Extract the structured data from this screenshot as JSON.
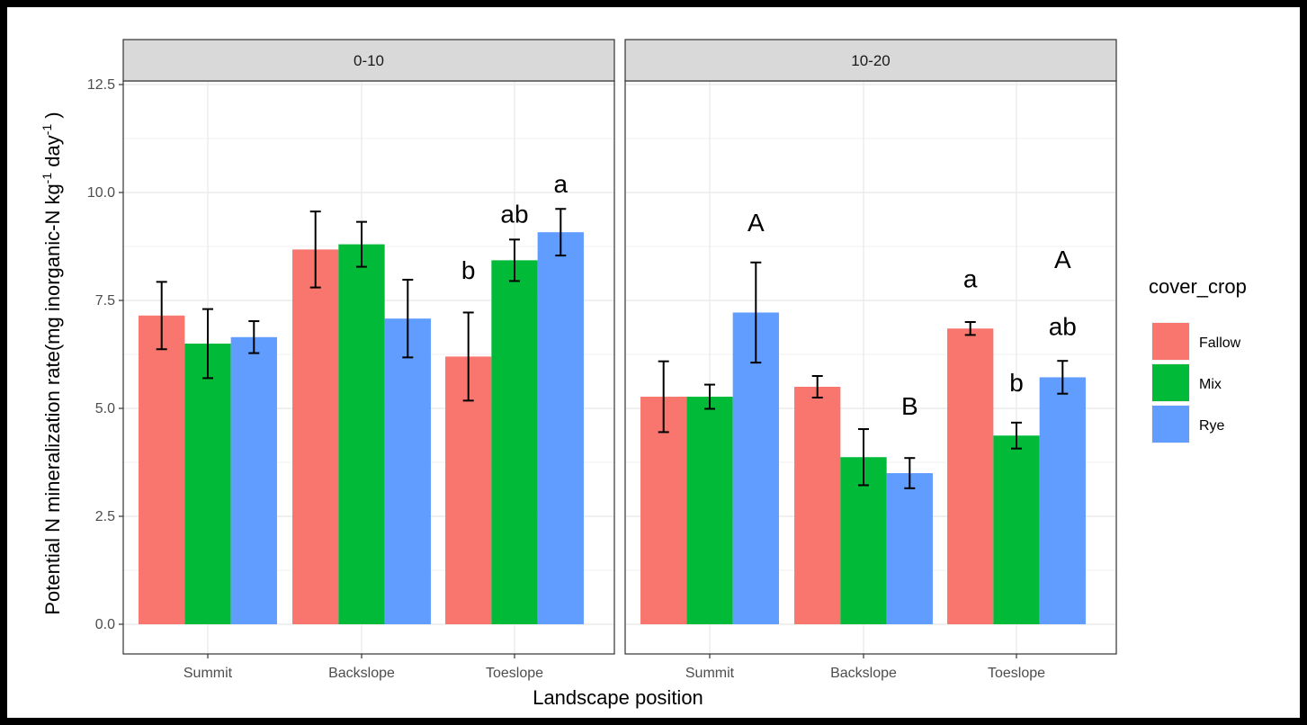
{
  "chart_data": {
    "type": "bar",
    "ylabel_main": "Potential N mineralization rate(mg inorganic-N kg",
    "ylabel_sup1": "-1",
    "ylabel_mid": " day",
    "ylabel_sup2": "-1",
    "ylabel_end": " )",
    "xlabel": "Landscape position",
    "ylim": [
      0,
      12.5
    ],
    "yticks": [
      "0.0",
      "2.5",
      "5.0",
      "7.5",
      "10.0",
      "12.5"
    ],
    "ytick_values": [
      0,
      2.5,
      5,
      7.5,
      10,
      12.5
    ],
    "categories": [
      "Summit",
      "Backslope",
      "Toeslope"
    ],
    "legend": {
      "title": "cover_crop",
      "placement": "right",
      "items": [
        {
          "name": "Fallow",
          "color": "#F8766D"
        },
        {
          "name": "Mix",
          "color": "#00BA38"
        },
        {
          "name": "Rye",
          "color": "#619CFF"
        }
      ]
    },
    "facets": [
      {
        "label": "0-10",
        "series": [
          {
            "name": "Fallow",
            "values": [
              7.15,
              8.68,
              6.2
            ],
            "err_low": [
              6.37,
              7.8,
              5.18
            ],
            "err_high": [
              7.93,
              9.56,
              7.22
            ]
          },
          {
            "name": "Mix",
            "values": [
              6.5,
              8.8,
              8.43
            ],
            "err_low": [
              5.7,
              8.28,
              7.95
            ],
            "err_high": [
              7.3,
              9.32,
              8.91
            ]
          },
          {
            "name": "Rye",
            "values": [
              6.65,
              7.08,
              9.08
            ],
            "err_low": [
              6.28,
              6.18,
              8.54
            ],
            "err_high": [
              7.02,
              7.98,
              9.62
            ]
          }
        ],
        "annotations": [
          {
            "text": "b",
            "category": 2,
            "series": 0,
            "y": 8.0
          },
          {
            "text": "ab",
            "category": 2,
            "series": 1,
            "y": 9.3
          },
          {
            "text": "a",
            "category": 2,
            "series": 2,
            "y": 10.0
          }
        ]
      },
      {
        "label": "10-20",
        "series": [
          {
            "name": "Fallow",
            "values": [
              5.27,
              5.5,
              6.85
            ],
            "err_low": [
              4.45,
              5.25,
              6.7
            ],
            "err_high": [
              6.09,
              5.75,
              7.0
            ]
          },
          {
            "name": "Mix",
            "values": [
              5.27,
              3.87,
              4.37
            ],
            "err_low": [
              4.99,
              3.22,
              4.07
            ],
            "err_high": [
              5.55,
              4.52,
              4.67
            ]
          },
          {
            "name": "Rye",
            "values": [
              7.22,
              3.5,
              5.72
            ],
            "err_low": [
              6.06,
              3.15,
              5.34
            ],
            "err_high": [
              8.38,
              3.85,
              6.1
            ]
          }
        ],
        "annotations": [
          {
            "text": "A",
            "category": 0,
            "series": 2,
            "y": 9.1
          },
          {
            "text": "B",
            "category": 1,
            "series": 2,
            "y": 4.85
          },
          {
            "text": "a",
            "category": 2,
            "series": 0,
            "y": 7.8
          },
          {
            "text": "b",
            "category": 2,
            "series": 1,
            "y": 5.4
          },
          {
            "text": "A",
            "category": 2,
            "series": 2,
            "y": 8.25
          },
          {
            "text": "ab",
            "category": 2,
            "series": 2,
            "y": 6.7
          }
        ]
      }
    ],
    "grid": true
  }
}
